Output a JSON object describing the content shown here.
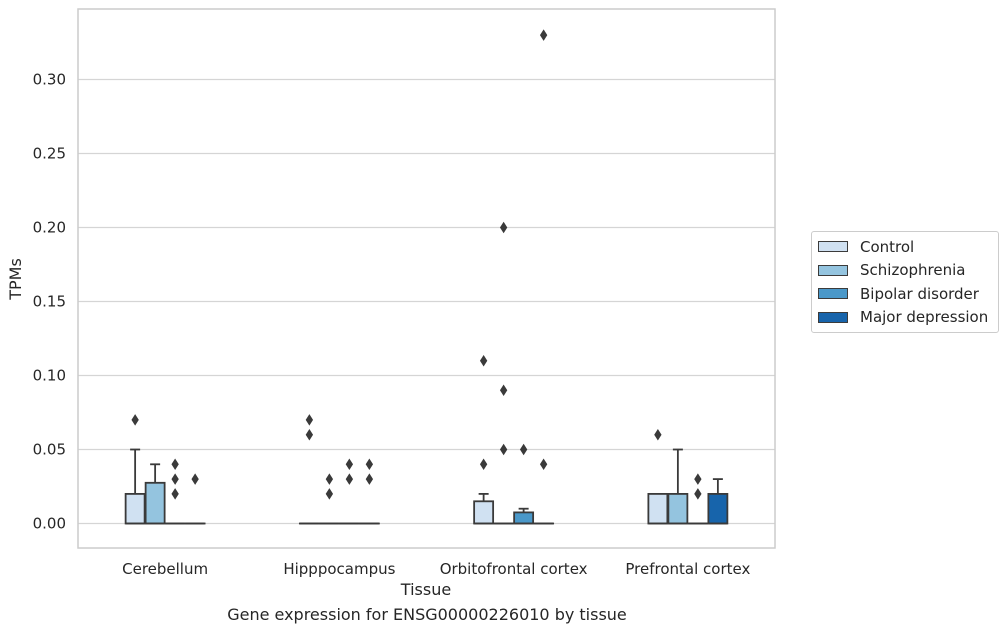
{
  "chart_data": {
    "type": "box",
    "title": "",
    "caption": "Gene expression for ENSG00000226010 by tissue",
    "xlabel": "Tissue",
    "ylabel": "TPMs",
    "ylim": [
      -0.017,
      0.347
    ],
    "yticks": [
      0.0,
      0.05,
      0.1,
      0.15,
      0.2,
      0.25,
      0.3
    ],
    "ytick_labels": [
      "0.00",
      "0.05",
      "0.10",
      "0.15",
      "0.20",
      "0.25",
      "0.30"
    ],
    "grid": "horizontal",
    "legend_position": "right",
    "categories": [
      "Cerebellum",
      "Hipppocampus",
      "Orbitofrontal cortex",
      "Prefrontal cortex"
    ],
    "series": [
      {
        "name": "Control",
        "color": "#d0e1f2",
        "boxes": [
          {
            "min": 0.0,
            "q1": 0.0,
            "median": 0.0,
            "q3": 0.02,
            "max": 0.05,
            "outliers": [
              0.07
            ]
          },
          {
            "min": 0.0,
            "q1": 0.0,
            "median": 0.0,
            "q3": 0.0,
            "max": 0.0,
            "outliers": [
              0.06,
              0.07
            ]
          },
          {
            "min": 0.0,
            "q1": 0.0,
            "median": 0.0,
            "q3": 0.015,
            "max": 0.02,
            "outliers": [
              0.04,
              0.11
            ]
          },
          {
            "min": 0.0,
            "q1": 0.0,
            "median": 0.0,
            "q3": 0.02,
            "max": 0.02,
            "outliers": [
              0.06
            ]
          }
        ]
      },
      {
        "name": "Schizophrenia",
        "color": "#94c4df",
        "boxes": [
          {
            "min": 0.0,
            "q1": 0.0,
            "median": 0.0,
            "q3": 0.0275,
            "max": 0.04,
            "outliers": []
          },
          {
            "min": 0.0,
            "q1": 0.0,
            "median": 0.0,
            "q3": 0.0,
            "max": 0.0,
            "outliers": [
              0.02,
              0.03
            ]
          },
          {
            "min": 0.0,
            "q1": 0.0,
            "median": 0.0,
            "q3": 0.0,
            "max": 0.0,
            "outliers": [
              0.05,
              0.09,
              0.2
            ]
          },
          {
            "min": 0.0,
            "q1": 0.0,
            "median": 0.0,
            "q3": 0.02,
            "max": 0.05,
            "outliers": []
          }
        ]
      },
      {
        "name": "Bipolar disorder",
        "color": "#4a98c9",
        "boxes": [
          {
            "min": 0.0,
            "q1": 0.0,
            "median": 0.0,
            "q3": 0.0,
            "max": 0.0,
            "outliers": [
              0.02,
              0.03,
              0.04
            ]
          },
          {
            "min": 0.0,
            "q1": 0.0,
            "median": 0.0,
            "q3": 0.0,
            "max": 0.0,
            "outliers": [
              0.03,
              0.04
            ]
          },
          {
            "min": 0.0,
            "q1": 0.0,
            "median": 0.0,
            "q3": 0.0075,
            "max": 0.01,
            "outliers": [
              0.05
            ]
          },
          {
            "min": 0.0,
            "q1": 0.0,
            "median": 0.0,
            "q3": 0.0,
            "max": 0.0,
            "outliers": [
              0.02,
              0.03
            ]
          }
        ]
      },
      {
        "name": "Major depression",
        "color": "#1764ab",
        "boxes": [
          {
            "min": 0.0,
            "q1": 0.0,
            "median": 0.0,
            "q3": 0.0,
            "max": 0.0,
            "outliers": [
              0.03
            ]
          },
          {
            "min": 0.0,
            "q1": 0.0,
            "median": 0.0,
            "q3": 0.0,
            "max": 0.0,
            "outliers": [
              0.03,
              0.04
            ]
          },
          {
            "min": 0.0,
            "q1": 0.0,
            "median": 0.0,
            "q3": 0.0,
            "max": 0.0,
            "outliers": [
              0.04,
              0.33
            ]
          },
          {
            "min": 0.0,
            "q1": 0.0,
            "median": 0.0,
            "q3": 0.02,
            "max": 0.03,
            "outliers": []
          }
        ]
      }
    ]
  }
}
